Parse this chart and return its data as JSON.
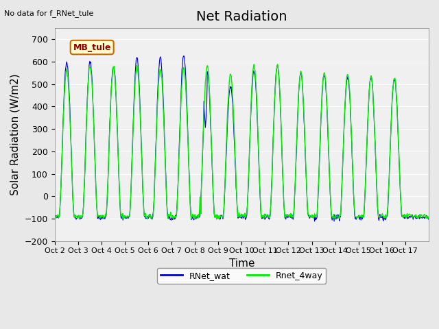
{
  "title": "Net Radiation",
  "ylabel": "Solar Radiation (W/m2)",
  "xlabel": "Time",
  "top_left_text": "No data for f_RNet_tule",
  "box_label": "MB_tule",
  "ylim": [
    -200,
    750
  ],
  "yticks": [
    -200,
    -100,
    0,
    100,
    200,
    300,
    400,
    500,
    600,
    700
  ],
  "xtick_labels": [
    "Oct 2",
    "Oct 3",
    "Oct 4",
    "Oct 5",
    "Oct 6",
    "Oct 7",
    "Oct 8",
    "Oct 9",
    "Oct 10",
    "Oct 11",
    "Oct 12",
    "Oct 13",
    "Oct 14",
    "Oct 15",
    "Oct 16",
    "Oct 17"
  ],
  "line1_color": "#0000cc",
  "line2_color": "#00ee00",
  "line1_label": "RNet_wat",
  "line2_label": "Rnet_4way",
  "background_color": "#e8e8e8",
  "plot_bg_color": "#f0f0f0",
  "title_fontsize": 14,
  "axis_label_fontsize": 11,
  "tick_fontsize": 9,
  "n_days": 16,
  "pts_per_day": 48,
  "blue_peaks": [
    600,
    600,
    580,
    615,
    620,
    630,
    560,
    490,
    560,
    580,
    550,
    540,
    535,
    530,
    525
  ],
  "green_peaks": [
    560,
    580,
    580,
    575,
    570,
    570,
    580,
    545,
    585,
    585,
    555,
    550,
    545,
    535,
    525
  ],
  "blue_night": -95,
  "green_night": -90,
  "oct8_dip_blue": 300,
  "oct8_dip_green": 15
}
